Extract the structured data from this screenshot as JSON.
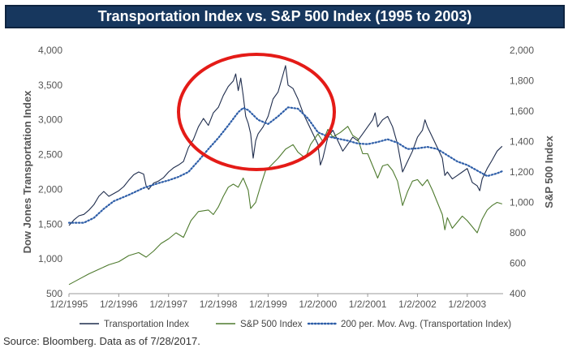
{
  "chart_data": {
    "type": "line",
    "title": "Transportation Index vs. S&P 500 Index (1995 to 2003)",
    "ylabel_left": "Dow Jones Transportation Index",
    "ylabel_right": "S&P 500 Index",
    "ylim_left": [
      500,
      4000
    ],
    "ylim_right": [
      400,
      2000
    ],
    "yticks_left": [
      "500",
      "1,000",
      "1,500",
      "2,000",
      "2,500",
      "3,000",
      "3,500",
      "4,000"
    ],
    "yticks_right": [
      "400",
      "600",
      "800",
      "1,000",
      "1,200",
      "1,400",
      "1,600",
      "1,800",
      "2,000"
    ],
    "x_range_years": [
      1995.0,
      2003.72
    ],
    "xticks": [
      "1/2/1995",
      "1/2/1996",
      "1/2/1997",
      "1/2/1998",
      "1/2/1999",
      "1/2/2000",
      "1/2/2001",
      "1/2/2002",
      "1/2/2003"
    ],
    "legend_position": "bottom",
    "grid": false,
    "series": [
      {
        "name": "Transportation Index",
        "axis": "left",
        "color": "#1f2d4d",
        "style": "solid",
        "points": [
          [
            1995.0,
            1480
          ],
          [
            1995.1,
            1560
          ],
          [
            1995.2,
            1620
          ],
          [
            1995.3,
            1640
          ],
          [
            1995.4,
            1700
          ],
          [
            1995.5,
            1780
          ],
          [
            1995.6,
            1900
          ],
          [
            1995.7,
            1970
          ],
          [
            1995.8,
            1900
          ],
          [
            1995.9,
            1940
          ],
          [
            1996.0,
            1980
          ],
          [
            1996.1,
            2040
          ],
          [
            1996.2,
            2130
          ],
          [
            1996.3,
            2210
          ],
          [
            1996.4,
            2250
          ],
          [
            1996.5,
            2220
          ],
          [
            1996.55,
            2050
          ],
          [
            1996.6,
            2000
          ],
          [
            1996.7,
            2090
          ],
          [
            1996.8,
            2120
          ],
          [
            1996.9,
            2170
          ],
          [
            1997.0,
            2250
          ],
          [
            1997.1,
            2310
          ],
          [
            1997.2,
            2350
          ],
          [
            1997.3,
            2400
          ],
          [
            1997.4,
            2600
          ],
          [
            1997.5,
            2720
          ],
          [
            1997.6,
            2900
          ],
          [
            1997.7,
            3020
          ],
          [
            1997.8,
            2920
          ],
          [
            1997.9,
            3100
          ],
          [
            1998.0,
            3180
          ],
          [
            1998.1,
            3350
          ],
          [
            1998.2,
            3480
          ],
          [
            1998.3,
            3560
          ],
          [
            1998.35,
            3660
          ],
          [
            1998.4,
            3420
          ],
          [
            1998.45,
            3600
          ],
          [
            1998.5,
            3350
          ],
          [
            1998.55,
            3050
          ],
          [
            1998.6,
            2950
          ],
          [
            1998.65,
            2800
          ],
          [
            1998.7,
            2450
          ],
          [
            1998.75,
            2700
          ],
          [
            1998.8,
            2800
          ],
          [
            1998.9,
            2900
          ],
          [
            1999.0,
            3050
          ],
          [
            1999.1,
            3300
          ],
          [
            1999.2,
            3400
          ],
          [
            1999.3,
            3650
          ],
          [
            1999.35,
            3780
          ],
          [
            1999.4,
            3500
          ],
          [
            1999.5,
            3450
          ],
          [
            1999.6,
            3300
          ],
          [
            1999.7,
            3100
          ],
          [
            1999.8,
            2950
          ],
          [
            1999.9,
            2800
          ],
          [
            2000.0,
            2650
          ],
          [
            2000.05,
            2350
          ],
          [
            2000.1,
            2450
          ],
          [
            2000.2,
            2750
          ],
          [
            2000.3,
            2850
          ],
          [
            2000.4,
            2700
          ],
          [
            2000.5,
            2550
          ],
          [
            2000.6,
            2650
          ],
          [
            2000.7,
            2750
          ],
          [
            2000.8,
            2700
          ],
          [
            2000.9,
            2800
          ],
          [
            2001.0,
            2900
          ],
          [
            2001.1,
            3000
          ],
          [
            2001.15,
            3100
          ],
          [
            2001.2,
            2900
          ],
          [
            2001.3,
            3000
          ],
          [
            2001.4,
            3050
          ],
          [
            2001.5,
            2900
          ],
          [
            2001.6,
            2650
          ],
          [
            2001.7,
            2250
          ],
          [
            2001.8,
            2400
          ],
          [
            2001.9,
            2550
          ],
          [
            2002.0,
            2750
          ],
          [
            2002.1,
            2850
          ],
          [
            2002.15,
            3000
          ],
          [
            2002.2,
            2900
          ],
          [
            2002.3,
            2750
          ],
          [
            2002.4,
            2600
          ],
          [
            2002.5,
            2450
          ],
          [
            2002.55,
            2200
          ],
          [
            2002.6,
            2250
          ],
          [
            2002.7,
            2150
          ],
          [
            2002.8,
            2200
          ],
          [
            2002.9,
            2250
          ],
          [
            2003.0,
            2300
          ],
          [
            2003.1,
            2100
          ],
          [
            2003.2,
            2050
          ],
          [
            2003.25,
            1980
          ],
          [
            2003.3,
            2150
          ],
          [
            2003.4,
            2300
          ],
          [
            2003.5,
            2420
          ],
          [
            2003.6,
            2550
          ],
          [
            2003.7,
            2620
          ]
        ]
      },
      {
        "name": "S&P 500 Index",
        "axis": "right",
        "color": "#4e7a2e",
        "style": "solid",
        "points": [
          [
            1995.0,
            460
          ],
          [
            1995.2,
            495
          ],
          [
            1995.4,
            530
          ],
          [
            1995.6,
            560
          ],
          [
            1995.8,
            590
          ],
          [
            1996.0,
            610
          ],
          [
            1996.2,
            650
          ],
          [
            1996.4,
            670
          ],
          [
            1996.55,
            640
          ],
          [
            1996.7,
            680
          ],
          [
            1996.85,
            730
          ],
          [
            1997.0,
            760
          ],
          [
            1997.15,
            800
          ],
          [
            1997.3,
            770
          ],
          [
            1997.45,
            880
          ],
          [
            1997.6,
            940
          ],
          [
            1997.8,
            950
          ],
          [
            1997.9,
            920
          ],
          [
            1998.0,
            970
          ],
          [
            1998.1,
            1040
          ],
          [
            1998.2,
            1100
          ],
          [
            1998.3,
            1120
          ],
          [
            1998.4,
            1100
          ],
          [
            1998.5,
            1160
          ],
          [
            1998.6,
            1080
          ],
          [
            1998.65,
            960
          ],
          [
            1998.75,
            1000
          ],
          [
            1998.85,
            1110
          ],
          [
            1998.95,
            1210
          ],
          [
            1999.05,
            1240
          ],
          [
            1999.2,
            1290
          ],
          [
            1999.35,
            1350
          ],
          [
            1999.5,
            1380
          ],
          [
            1999.6,
            1330
          ],
          [
            1999.75,
            1290
          ],
          [
            1999.85,
            1380
          ],
          [
            2000.0,
            1450
          ],
          [
            2000.1,
            1400
          ],
          [
            2000.2,
            1480
          ],
          [
            2000.3,
            1430
          ],
          [
            2000.45,
            1460
          ],
          [
            2000.6,
            1500
          ],
          [
            2000.7,
            1440
          ],
          [
            2000.8,
            1420
          ],
          [
            2000.9,
            1320
          ],
          [
            2001.0,
            1320
          ],
          [
            2001.1,
            1240
          ],
          [
            2001.2,
            1160
          ],
          [
            2001.3,
            1240
          ],
          [
            2001.4,
            1250
          ],
          [
            2001.5,
            1210
          ],
          [
            2001.6,
            1140
          ],
          [
            2001.7,
            980
          ],
          [
            2001.8,
            1070
          ],
          [
            2001.9,
            1140
          ],
          [
            2002.0,
            1150
          ],
          [
            2002.1,
            1110
          ],
          [
            2002.2,
            1150
          ],
          [
            2002.3,
            1080
          ],
          [
            2002.4,
            1000
          ],
          [
            2002.5,
            920
          ],
          [
            2002.55,
            820
          ],
          [
            2002.6,
            900
          ],
          [
            2002.7,
            830
          ],
          [
            2002.8,
            870
          ],
          [
            2002.9,
            910
          ],
          [
            2003.0,
            880
          ],
          [
            2003.1,
            840
          ],
          [
            2003.2,
            800
          ],
          [
            2003.3,
            890
          ],
          [
            2003.4,
            950
          ],
          [
            2003.5,
            980
          ],
          [
            2003.6,
            1000
          ],
          [
            2003.7,
            990
          ]
        ]
      },
      {
        "name": "200 per. Mov. Avg. (Transportation Index)",
        "axis": "left",
        "color": "#2e5ea8",
        "style": "dotted",
        "points": [
          [
            1995.0,
            1520
          ],
          [
            1995.3,
            1520
          ],
          [
            1995.5,
            1590
          ],
          [
            1995.7,
            1720
          ],
          [
            1995.9,
            1830
          ],
          [
            1996.2,
            1920
          ],
          [
            1996.5,
            2020
          ],
          [
            1996.8,
            2090
          ],
          [
            1997.0,
            2130
          ],
          [
            1997.2,
            2180
          ],
          [
            1997.4,
            2250
          ],
          [
            1997.6,
            2410
          ],
          [
            1997.8,
            2580
          ],
          [
            1998.0,
            2740
          ],
          [
            1998.2,
            2920
          ],
          [
            1998.4,
            3110
          ],
          [
            1998.5,
            3170
          ],
          [
            1998.6,
            3140
          ],
          [
            1998.8,
            3000
          ],
          [
            1999.0,
            2940
          ],
          [
            1999.2,
            3050
          ],
          [
            1999.4,
            3180
          ],
          [
            1999.6,
            3160
          ],
          [
            1999.8,
            3020
          ],
          [
            2000.0,
            2820
          ],
          [
            2000.2,
            2760
          ],
          [
            2000.4,
            2730
          ],
          [
            2000.6,
            2700
          ],
          [
            2000.8,
            2660
          ],
          [
            2001.0,
            2650
          ],
          [
            2001.2,
            2680
          ],
          [
            2001.4,
            2720
          ],
          [
            2001.6,
            2670
          ],
          [
            2001.8,
            2580
          ],
          [
            2002.0,
            2590
          ],
          [
            2002.2,
            2610
          ],
          [
            2002.4,
            2580
          ],
          [
            2002.6,
            2490
          ],
          [
            2002.8,
            2400
          ],
          [
            2003.0,
            2350
          ],
          [
            2003.2,
            2270
          ],
          [
            2003.4,
            2190
          ],
          [
            2003.6,
            2230
          ],
          [
            2003.7,
            2260
          ]
        ]
      }
    ]
  },
  "source_text": "Source: Bloomberg. Data as of 7/28/2017."
}
